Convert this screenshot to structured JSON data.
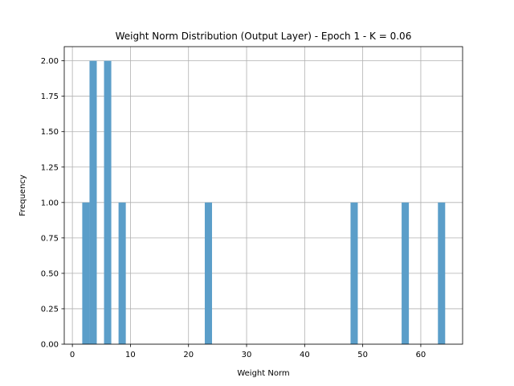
{
  "chart_data": {
    "type": "bar",
    "title": "Weight Norm Distribution (Output Layer) - Epoch 1 - K = 0.06",
    "xlabel": "Weight Norm",
    "ylabel": "Frequency",
    "xlim": [
      -1.4,
      67.2
    ],
    "ylim": [
      0,
      2.1
    ],
    "xticks": [
      0,
      10,
      20,
      30,
      40,
      50,
      60
    ],
    "xtick_labels": [
      "0",
      "10",
      "20",
      "30",
      "40",
      "50",
      "60"
    ],
    "yticks": [
      0,
      0.25,
      0.5,
      0.75,
      1.0,
      1.25,
      1.5,
      1.75,
      2.0
    ],
    "ytick_labels": [
      "0.00",
      "0.25",
      "0.50",
      "0.75",
      "1.00",
      "1.25",
      "1.50",
      "1.75",
      "2.00"
    ],
    "grid": true,
    "bar_color": "#5b9ec9",
    "bins": [
      {
        "x0": 1.7,
        "x1": 2.95,
        "count": 1
      },
      {
        "x0": 2.95,
        "x1": 4.2,
        "count": 2
      },
      {
        "x0": 5.45,
        "x1": 6.7,
        "count": 2
      },
      {
        "x0": 7.95,
        "x1": 9.2,
        "count": 1
      },
      {
        "x0": 22.8,
        "x1": 24.05,
        "count": 1
      },
      {
        "x0": 47.9,
        "x1": 49.15,
        "count": 1
      },
      {
        "x0": 56.7,
        "x1": 57.95,
        "count": 1
      },
      {
        "x0": 62.95,
        "x1": 64.2,
        "count": 1
      }
    ]
  }
}
